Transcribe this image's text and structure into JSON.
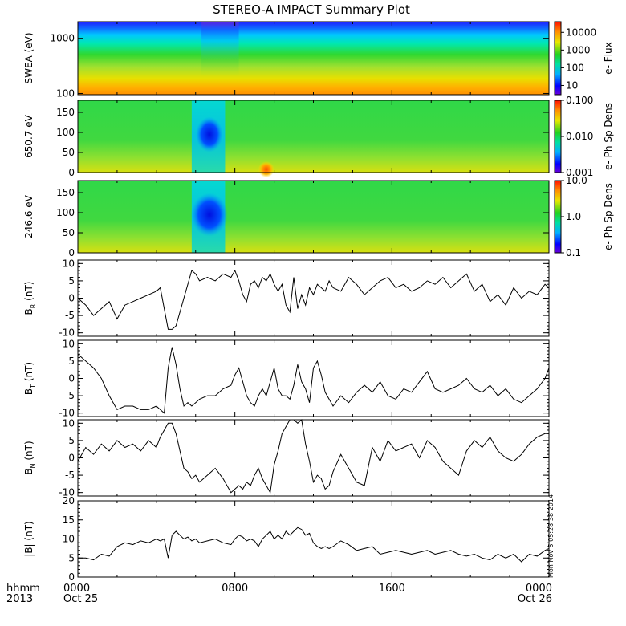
{
  "title": "STEREO-A IMPACT Summary Plot",
  "timestamp": "Mon Nov  5 05:28:38 2014",
  "time_axis": {
    "corner_labels": [
      "hhmm",
      "2013"
    ],
    "ticks": [
      {
        "hour": 0,
        "label": "0000",
        "date": "Oct 25"
      },
      {
        "hour": 8,
        "label": "0800",
        "date": ""
      },
      {
        "hour": 16,
        "label": "1600",
        "date": ""
      },
      {
        "hour": 24,
        "label": "0000",
        "date": "Oct 26"
      }
    ],
    "range_hours": [
      0,
      24
    ]
  },
  "chart_data": [
    {
      "type": "heatmap",
      "ylabel": "SWEA (eV)",
      "yscale": "log",
      "ylim": [
        95,
        2000
      ],
      "yticks": [
        {
          "v": 100,
          "label": "100"
        },
        {
          "v": 1000,
          "label": "1000"
        }
      ],
      "colorbar": {
        "label": "e- Flux",
        "scale": "log",
        "range": [
          3,
          40000
        ],
        "ticks": [
          {
            "v": 10,
            "label": "10"
          },
          {
            "v": 100,
            "label": "100"
          },
          {
            "v": 1000,
            "label": "1000"
          },
          {
            "v": 10000,
            "label": "10000"
          }
        ]
      }
    },
    {
      "type": "heatmap",
      "ylabel": "650.7 eV",
      "yscale": "linear",
      "ylim": [
        0,
        180
      ],
      "yticks": [
        {
          "v": 0,
          "label": "0"
        },
        {
          "v": 50,
          "label": "50"
        },
        {
          "v": 100,
          "label": "100"
        },
        {
          "v": 150,
          "label": "150"
        }
      ],
      "colorbar": {
        "label": "e- Ph Sp Dens",
        "scale": "log",
        "range": [
          0.001,
          0.1
        ],
        "ticks": [
          {
            "v": 0.001,
            "label": "0.001"
          },
          {
            "v": 0.01,
            "label": "0.010"
          },
          {
            "v": 0.1,
            "label": "0.100"
          }
        ]
      }
    },
    {
      "type": "heatmap",
      "ylabel": "246.6 eV",
      "yscale": "linear",
      "ylim": [
        0,
        180
      ],
      "yticks": [
        {
          "v": 0,
          "label": "0"
        },
        {
          "v": 50,
          "label": "50"
        },
        {
          "v": 100,
          "label": "100"
        },
        {
          "v": 150,
          "label": "150"
        }
      ],
      "colorbar": {
        "label": "e- Ph Sp Dens",
        "scale": "log",
        "range": [
          0.1,
          10
        ],
        "ticks": [
          {
            "v": 0.1,
            "label": "0.1"
          },
          {
            "v": 1,
            "label": "1.0"
          },
          {
            "v": 10,
            "label": "10.0"
          }
        ]
      }
    },
    {
      "type": "line",
      "ylabel": "B",
      "ysub": "R",
      "yunit": "(nT)",
      "ylim": [
        -11,
        11
      ],
      "yticks": [
        {
          "v": -10,
          "label": "-10"
        },
        {
          "v": -5,
          "label": "-5"
        },
        {
          "v": 0,
          "label": "0"
        },
        {
          "v": 5,
          "label": "5"
        },
        {
          "v": 10,
          "label": "10"
        }
      ],
      "x": [
        0.0,
        0.4,
        0.8,
        1.2,
        1.6,
        2.0,
        2.4,
        2.8,
        3.2,
        3.6,
        4.0,
        4.2,
        4.4,
        4.6,
        4.8,
        5.0,
        5.2,
        5.4,
        5.6,
        5.8,
        6.0,
        6.2,
        6.6,
        7.0,
        7.4,
        7.8,
        8.0,
        8.2,
        8.4,
        8.6,
        8.8,
        9.0,
        9.2,
        9.4,
        9.6,
        9.8,
        10.0,
        10.2,
        10.4,
        10.6,
        10.8,
        11.0,
        11.2,
        11.4,
        11.6,
        11.8,
        12.0,
        12.2,
        12.4,
        12.6,
        12.8,
        13.0,
        13.4,
        13.8,
        14.2,
        14.6,
        15.0,
        15.4,
        15.8,
        16.2,
        16.6,
        17.0,
        17.4,
        17.8,
        18.2,
        18.6,
        19.0,
        19.4,
        19.8,
        20.2,
        20.6,
        21.0,
        21.4,
        21.8,
        22.2,
        22.6,
        23.0,
        23.4,
        23.8,
        24.0
      ],
      "y": [
        0,
        -2,
        -5,
        -3,
        -1,
        -6,
        -2,
        -1,
        0,
        1,
        2,
        3,
        -3,
        -9,
        -9,
        -8,
        -4,
        0,
        4,
        8,
        7,
        5,
        6,
        5,
        7,
        6,
        8,
        5,
        1,
        -1,
        4,
        5,
        3,
        6,
        5,
        7,
        4,
        2,
        4,
        -2,
        -4,
        6,
        -3,
        1,
        -2,
        3,
        1,
        4,
        3,
        2,
        5,
        3,
        2,
        6,
        4,
        1,
        3,
        5,
        6,
        3,
        4,
        2,
        3,
        5,
        4,
        6,
        3,
        5,
        7,
        2,
        4,
        -1,
        1,
        -2,
        3,
        0,
        2,
        1,
        4,
        3
      ]
    },
    {
      "type": "line",
      "ylabel": "B",
      "ysub": "T",
      "yunit": "(nT)",
      "ylim": [
        -11,
        11
      ],
      "yticks": [
        {
          "v": -10,
          "label": "-10"
        },
        {
          "v": -5,
          "label": "-5"
        },
        {
          "v": 0,
          "label": "0"
        },
        {
          "v": 5,
          "label": "5"
        },
        {
          "v": 10,
          "label": "10"
        }
      ],
      "x": [
        0.0,
        0.4,
        0.8,
        1.2,
        1.6,
        2.0,
        2.4,
        2.8,
        3.2,
        3.6,
        4.0,
        4.2,
        4.4,
        4.6,
        4.8,
        5.0,
        5.2,
        5.4,
        5.6,
        5.8,
        6.0,
        6.2,
        6.6,
        7.0,
        7.4,
        7.8,
        8.0,
        8.2,
        8.4,
        8.6,
        8.8,
        9.0,
        9.2,
        9.4,
        9.6,
        9.8,
        10.0,
        10.2,
        10.4,
        10.6,
        10.8,
        11.0,
        11.2,
        11.4,
        11.6,
        11.8,
        12.0,
        12.2,
        12.4,
        12.6,
        12.8,
        13.0,
        13.4,
        13.8,
        14.2,
        14.6,
        15.0,
        15.4,
        15.8,
        16.2,
        16.6,
        17.0,
        17.4,
        17.8,
        18.2,
        18.6,
        19.0,
        19.4,
        19.8,
        20.2,
        20.6,
        21.0,
        21.4,
        21.8,
        22.2,
        22.6,
        23.0,
        23.4,
        23.8,
        24.0
      ],
      "y": [
        7,
        5,
        3,
        0,
        -5,
        -9,
        -8,
        -8,
        -9,
        -9,
        -8,
        -9,
        -10,
        3,
        9,
        4,
        -3,
        -8,
        -7,
        -8,
        -7,
        -6,
        -5,
        -5,
        -3,
        -2,
        1,
        3,
        -1,
        -5,
        -7,
        -8,
        -5,
        -3,
        -5,
        -1,
        3,
        -3,
        -5,
        -5,
        -6,
        -2,
        4,
        -1,
        -3,
        -7,
        3,
        5,
        1,
        -4,
        -6,
        -8,
        -5,
        -7,
        -4,
        -2,
        -4,
        -1,
        -5,
        -6,
        -3,
        -4,
        -1,
        2,
        -3,
        -4,
        -3,
        -2,
        0,
        -3,
        -4,
        -2,
        -5,
        -3,
        -6,
        -7,
        -5,
        -3,
        0,
        3
      ]
    },
    {
      "type": "line",
      "ylabel": "B",
      "ysub": "N",
      "yunit": "(nT)",
      "ylim": [
        -11,
        11
      ],
      "yticks": [
        {
          "v": -10,
          "label": "-10"
        },
        {
          "v": -5,
          "label": "-5"
        },
        {
          "v": 0,
          "label": "0"
        },
        {
          "v": 5,
          "label": "5"
        },
        {
          "v": 10,
          "label": "10"
        }
      ],
      "x": [
        0.0,
        0.4,
        0.8,
        1.2,
        1.6,
        2.0,
        2.4,
        2.8,
        3.2,
        3.6,
        4.0,
        4.2,
        4.4,
        4.6,
        4.8,
        5.0,
        5.2,
        5.4,
        5.6,
        5.8,
        6.0,
        6.2,
        6.6,
        7.0,
        7.4,
        7.8,
        8.0,
        8.2,
        8.4,
        8.6,
        8.8,
        9.0,
        9.2,
        9.4,
        9.6,
        9.8,
        10.0,
        10.2,
        10.4,
        10.6,
        10.8,
        11.0,
        11.2,
        11.4,
        11.6,
        11.8,
        12.0,
        12.2,
        12.4,
        12.6,
        12.8,
        13.0,
        13.4,
        13.8,
        14.2,
        14.6,
        15.0,
        15.4,
        15.8,
        16.2,
        16.6,
        17.0,
        17.4,
        17.8,
        18.2,
        18.6,
        19.0,
        19.4,
        19.8,
        20.2,
        20.6,
        21.0,
        21.4,
        21.8,
        22.2,
        22.6,
        23.0,
        23.4,
        23.8,
        24.0
      ],
      "y": [
        -1,
        3,
        1,
        4,
        2,
        5,
        3,
        4,
        2,
        5,
        3,
        6,
        8,
        10,
        10,
        7,
        2,
        -3,
        -4,
        -6,
        -5,
        -7,
        -5,
        -3,
        -6,
        -10,
        -9,
        -8,
        -9,
        -7,
        -8,
        -5,
        -3,
        -6,
        -8,
        -10,
        -2,
        2,
        7,
        9,
        11,
        11,
        10,
        11,
        4,
        -1,
        -7,
        -5,
        -6,
        -9,
        -8,
        -4,
        1,
        -3,
        -7,
        -8,
        3,
        -1,
        5,
        2,
        3,
        4,
        0,
        5,
        3,
        -1,
        -3,
        -5,
        2,
        5,
        3,
        6,
        2,
        0,
        -1,
        1,
        4,
        6,
        7,
        7
      ]
    },
    {
      "type": "line",
      "ylabel": "|B|",
      "yunit": "(nT)",
      "ylim": [
        0,
        20
      ],
      "yticks": [
        {
          "v": 0,
          "label": "0"
        },
        {
          "v": 5,
          "label": "5"
        },
        {
          "v": 10,
          "label": "10"
        },
        {
          "v": 15,
          "label": "15"
        },
        {
          "v": 20,
          "label": "20"
        }
      ],
      "x": [
        0.0,
        0.4,
        0.8,
        1.2,
        1.6,
        2.0,
        2.4,
        2.8,
        3.2,
        3.6,
        4.0,
        4.2,
        4.4,
        4.6,
        4.8,
        5.0,
        5.2,
        5.4,
        5.6,
        5.8,
        6.0,
        6.2,
        6.6,
        7.0,
        7.4,
        7.8,
        8.0,
        8.2,
        8.4,
        8.6,
        8.8,
        9.0,
        9.2,
        9.4,
        9.6,
        9.8,
        10.0,
        10.2,
        10.4,
        10.6,
        10.8,
        11.0,
        11.2,
        11.4,
        11.6,
        11.8,
        12.0,
        12.2,
        12.4,
        12.6,
        12.8,
        13.0,
        13.4,
        13.8,
        14.2,
        14.6,
        15.0,
        15.4,
        15.8,
        16.2,
        16.6,
        17.0,
        17.4,
        17.8,
        18.2,
        18.6,
        19.0,
        19.4,
        19.8,
        20.2,
        20.6,
        21.0,
        21.4,
        21.8,
        22.2,
        22.6,
        23.0,
        23.4,
        23.8,
        24.0
      ],
      "y": [
        5,
        5,
        4.5,
        6,
        5.5,
        8,
        9,
        8.5,
        9.5,
        9,
        10,
        9.5,
        10,
        5,
        11,
        12,
        11,
        10,
        10.5,
        9.5,
        10,
        9,
        9.5,
        10,
        9,
        8.5,
        10,
        11,
        10.5,
        9.5,
        10,
        9.5,
        8,
        10,
        11,
        12,
        10,
        11,
        10,
        12,
        11,
        12,
        13,
        12.5,
        11,
        11.5,
        9,
        8,
        7.5,
        8,
        7.5,
        8,
        9.5,
        8.5,
        7,
        7.5,
        8,
        6,
        6.5,
        7,
        6.5,
        6,
        6.5,
        7,
        6,
        6.5,
        7,
        6,
        5.5,
        6,
        5,
        4.5,
        6,
        5,
        6,
        4,
        6,
        5.5,
        7,
        7.5
      ]
    }
  ]
}
